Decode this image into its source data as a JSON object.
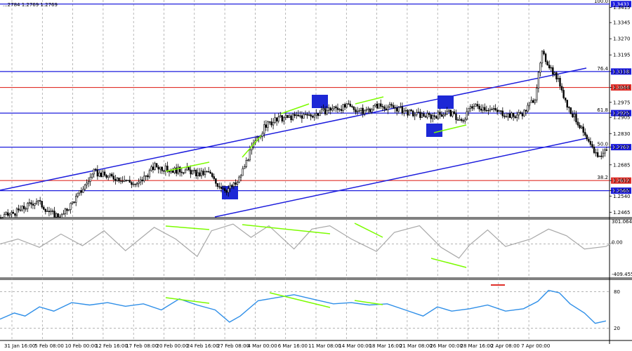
{
  "header": {
    "text": "...2784 1.2769 1.2769"
  },
  "colors": {
    "blue": "#1d1ddd",
    "red": "#e0302a",
    "green": "#7cfc00",
    "candle": "#000000",
    "cci": "#a8a8a8",
    "rsi": "#2f8fe8",
    "marker": "#1d28d6"
  },
  "chart_data": [
    {
      "type": "candlestick",
      "title": "",
      "ylim": [
        1.244,
        1.344
      ],
      "y_ticks": [
        "1.3415",
        "1.3345",
        "1.3270",
        "1.3195",
        "1.3118",
        "1.3044",
        "1.2975",
        "1.2925",
        "1.2905",
        "1.2830",
        "1.2767",
        "1.2685",
        "1.2612",
        "1.2565",
        "1.2540",
        "1.2465"
      ],
      "levels": [
        {
          "label": "100.0",
          "price": 1.3431,
          "value_label": "1.3431",
          "color": "#1d1ddd"
        },
        {
          "label": "76.4",
          "price": 1.3118,
          "value_label": "1.3118",
          "color": "#1d1ddd"
        },
        {
          "label": "",
          "price": 1.3044,
          "value_label": "1.3044",
          "color": "#e0302a"
        },
        {
          "label": "61.8",
          "price": 1.2925,
          "value_label": "1.2925",
          "color": "#1d1ddd"
        },
        {
          "label": "50.0",
          "price": 1.2767,
          "value_label": "1.2767",
          "color": "#1d1ddd"
        },
        {
          "label": "38.2",
          "price": 1.2612,
          "value_label": "1.2612",
          "color": "#e0302a"
        },
        {
          "label": "",
          "price": 1.2565,
          "value_label": "1.2565",
          "color": "#1d1ddd"
        }
      ],
      "x_labels": [
        "31 Jan 16:00",
        "5 Feb 08:00",
        "10 Feb 00:00",
        "12 Feb 16:00",
        "17 Feb 08:00",
        "20 Feb 00:00",
        "24 Feb 16:00",
        "27 Feb 08:00",
        "4 Mar 00:00",
        "6 Mar 16:00",
        "11 Mar 08:00",
        "14 Mar 00:00",
        "18 Mar 16:00",
        "21 Mar 08:00",
        "26 Mar 00:00",
        "28 Mar 16:00",
        "2 Apr 08:00",
        "7 Apr 00:00"
      ],
      "close_path": [
        [
          0,
          1.244
        ],
        [
          10,
          1.247
        ],
        [
          20,
          1.252
        ],
        [
          28,
          1.246
        ],
        [
          34,
          1.2445
        ],
        [
          45,
          1.2565
        ],
        [
          52,
          1.265
        ],
        [
          60,
          1.263
        ],
        [
          68,
          1.262
        ],
        [
          76,
          1.259
        ],
        [
          86,
          1.268
        ],
        [
          94,
          1.266
        ],
        [
          104,
          1.266
        ],
        [
          110,
          1.264
        ],
        [
          116,
          1.265
        ],
        [
          120,
          1.26
        ],
        [
          126,
          1.257
        ],
        [
          132,
          1.26
        ],
        [
          140,
          1.276
        ],
        [
          148,
          1.287
        ],
        [
          156,
          1.29
        ],
        [
          166,
          1.291
        ],
        [
          176,
          1.292
        ],
        [
          184,
          1.2945
        ],
        [
          194,
          1.2955
        ],
        [
          202,
          1.293
        ],
        [
          210,
          1.296
        ],
        [
          220,
          1.295
        ],
        [
          230,
          1.292
        ],
        [
          240,
          1.291
        ],
        [
          250,
          1.293
        ],
        [
          258,
          1.288
        ],
        [
          262,
          1.296
        ],
        [
          270,
          1.295
        ],
        [
          278,
          1.293
        ],
        [
          286,
          1.291
        ],
        [
          292,
          1.293
        ],
        [
          298,
          1.3
        ],
        [
          302,
          1.32
        ],
        [
          308,
          1.312
        ],
        [
          312,
          1.306
        ],
        [
          316,
          1.296
        ],
        [
          322,
          1.288
        ],
        [
          328,
          1.278
        ],
        [
          334,
          1.272
        ],
        [
          338,
          1.276
        ]
      ],
      "candle_count": 340,
      "candle_seed": 31
    },
    {
      "type": "line",
      "series": [
        {
          "values": []
        }
      ],
      "y_ticks": [
        "301.0642",
        "0.00",
        "-409.455"
      ],
      "path": [
        [
          0,
          0
        ],
        [
          10,
          60
        ],
        [
          22,
          -40
        ],
        [
          34,
          120
        ],
        [
          46,
          -20
        ],
        [
          58,
          160
        ],
        [
          70,
          -80
        ],
        [
          86,
          200
        ],
        [
          98,
          60
        ],
        [
          110,
          -150
        ],
        [
          118,
          160
        ],
        [
          130,
          240
        ],
        [
          140,
          80
        ],
        [
          150,
          220
        ],
        [
          164,
          -60
        ],
        [
          174,
          180
        ],
        [
          184,
          220
        ],
        [
          196,
          60
        ],
        [
          210,
          -90
        ],
        [
          220,
          140
        ],
        [
          234,
          220
        ],
        [
          246,
          -40
        ],
        [
          256,
          -170
        ],
        [
          262,
          -10
        ],
        [
          272,
          170
        ],
        [
          282,
          -30
        ],
        [
          296,
          60
        ],
        [
          306,
          180
        ],
        [
          316,
          100
        ],
        [
          326,
          -60
        ],
        [
          338,
          -30
        ],
        [
          342,
          20
        ]
      ],
      "ylim": [
        -409.455,
        301.0642
      ]
    },
    {
      "type": "line",
      "series": [
        {
          "values": []
        }
      ],
      "y_ticks": [
        "80",
        "20"
      ],
      "ylim": [
        0,
        100
      ],
      "path": [
        [
          0,
          35
        ],
        [
          8,
          45
        ],
        [
          14,
          40
        ],
        [
          22,
          55
        ],
        [
          30,
          48
        ],
        [
          40,
          62
        ],
        [
          50,
          58
        ],
        [
          60,
          62
        ],
        [
          70,
          56
        ],
        [
          80,
          60
        ],
        [
          90,
          50
        ],
        [
          100,
          68
        ],
        [
          110,
          58
        ],
        [
          120,
          50
        ],
        [
          128,
          30
        ],
        [
          134,
          40
        ],
        [
          144,
          65
        ],
        [
          154,
          70
        ],
        [
          164,
          75
        ],
        [
          174,
          68
        ],
        [
          186,
          60
        ],
        [
          196,
          62
        ],
        [
          206,
          58
        ],
        [
          216,
          60
        ],
        [
          226,
          50
        ],
        [
          236,
          40
        ],
        [
          244,
          55
        ],
        [
          252,
          48
        ],
        [
          262,
          52
        ],
        [
          272,
          58
        ],
        [
          282,
          48
        ],
        [
          292,
          52
        ],
        [
          300,
          64
        ],
        [
          306,
          82
        ],
        [
          312,
          78
        ],
        [
          318,
          60
        ],
        [
          326,
          45
        ],
        [
          332,
          28
        ],
        [
          338,
          32
        ]
      ]
    }
  ]
}
